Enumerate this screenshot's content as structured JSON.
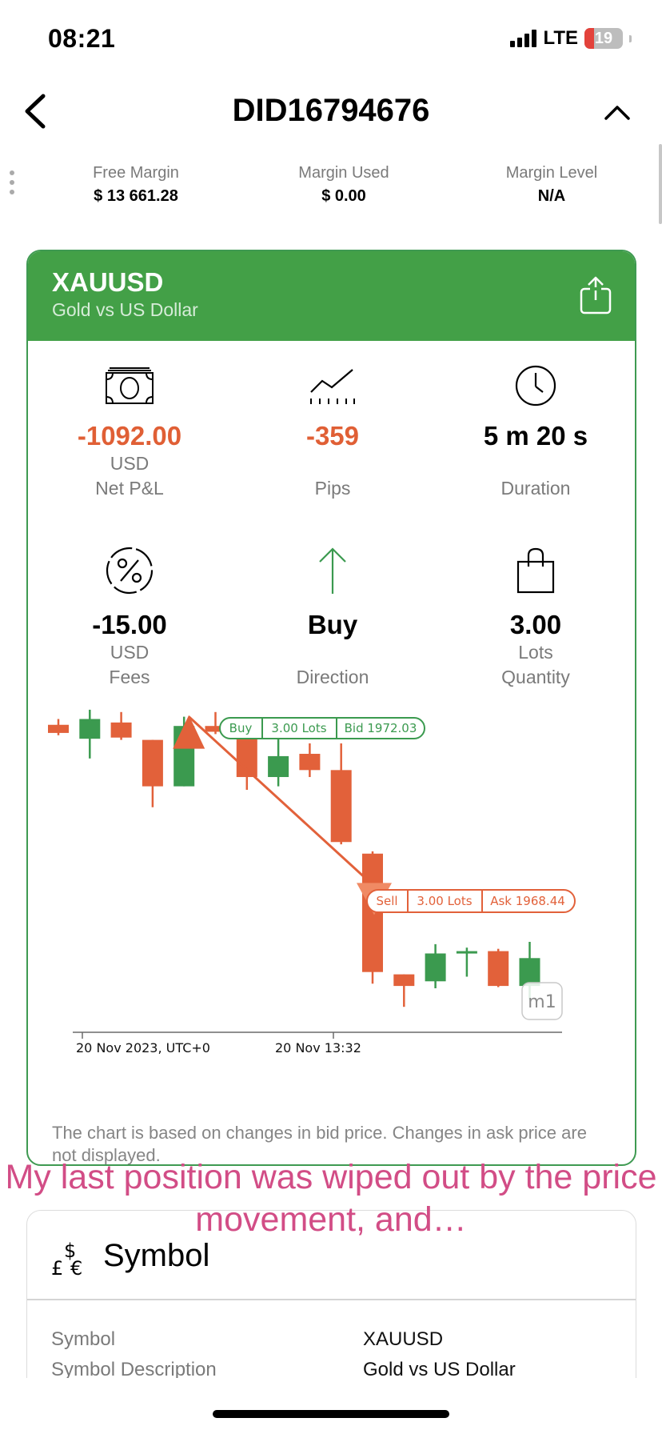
{
  "status": {
    "time": "08:21",
    "network": "LTE",
    "battery": "19"
  },
  "header": {
    "title": "DID16794676"
  },
  "account": [
    {
      "label": "Free Margin",
      "value": "$ 13 661.28"
    },
    {
      "label": "Margin Used",
      "value": "$ 0.00"
    },
    {
      "label": "Margin Level",
      "value": "N/A"
    }
  ],
  "position": {
    "symbol": "XAUUSD",
    "description": "Gold vs US Dollar",
    "metrics": [
      {
        "value": "-1092.00",
        "unit": "USD",
        "label": "Net P&L",
        "icon": "banknote-icon"
      },
      {
        "value": "-359",
        "unit": "",
        "label": "Pips",
        "icon": "pips-chart-icon"
      },
      {
        "value": "5 m 20 s",
        "unit": "",
        "label": "Duration",
        "icon": "clock-icon"
      },
      {
        "value": "-15.00",
        "unit": "USD",
        "label": "Fees",
        "icon": "percent-icon"
      },
      {
        "value": "Buy",
        "unit": "",
        "label": "Direction",
        "icon": "arrow-up-icon"
      },
      {
        "value": "3.00",
        "unit": "Lots",
        "label": "Quantity",
        "icon": "shopping-bag-icon"
      }
    ]
  },
  "chart_data": {
    "type": "candlestick",
    "x_ticks": [
      "20 Nov 2023, UTC+0",
      "20 Nov 13:32"
    ],
    "timeframe": "m1",
    "candles": [
      {
        "o": 1978.1,
        "h": 1978.6,
        "l": 1977.2,
        "c": 1977.4,
        "dir": "down"
      },
      {
        "o": 1976.9,
        "h": 1979.4,
        "l": 1975.2,
        "c": 1978.6,
        "dir": "up"
      },
      {
        "o": 1978.3,
        "h": 1979.2,
        "l": 1976.8,
        "c": 1977.0,
        "dir": "down"
      },
      {
        "o": 1976.8,
        "h": 1976.8,
        "l": 1971.0,
        "c": 1972.8,
        "dir": "down"
      },
      {
        "o": 1972.8,
        "h": 1978.8,
        "l": 1972.8,
        "c": 1978.0,
        "dir": "up"
      },
      {
        "o": 1978.0,
        "h": 1979.2,
        "l": 1977.3,
        "c": 1977.5,
        "dir": "down"
      },
      {
        "o": 1977.5,
        "h": 1978.5,
        "l": 1972.5,
        "c": 1973.6,
        "dir": "down"
      },
      {
        "o": 1973.6,
        "h": 1977.8,
        "l": 1972.8,
        "c": 1975.4,
        "dir": "up"
      },
      {
        "o": 1975.6,
        "h": 1976.5,
        "l": 1973.6,
        "c": 1974.2,
        "dir": "down"
      },
      {
        "o": 1974.2,
        "h": 1976.5,
        "l": 1967.8,
        "c": 1968.0,
        "dir": "down"
      },
      {
        "o": 1967.0,
        "h": 1967.2,
        "l": 1955.8,
        "c": 1956.8,
        "dir": "down"
      },
      {
        "o": 1956.6,
        "h": 1956.6,
        "l": 1953.8,
        "c": 1955.6,
        "dir": "down"
      },
      {
        "o": 1956.0,
        "h": 1959.2,
        "l": 1955.4,
        "c": 1958.4,
        "dir": "up"
      },
      {
        "o": 1958.4,
        "h": 1958.9,
        "l": 1956.4,
        "c": 1958.6,
        "dir": "up"
      },
      {
        "o": 1958.6,
        "h": 1958.8,
        "l": 1955.5,
        "c": 1955.6,
        "dir": "down"
      },
      {
        "o": 1955.6,
        "h": 1959.4,
        "l": 1954.4,
        "c": 1958.0,
        "dir": "up"
      }
    ],
    "entry": {
      "side": "Buy",
      "lots": "3.00 Lots",
      "price_label": "Bid 1972.03"
    },
    "exit": {
      "side": "Sell",
      "lots": "3.00 Lots",
      "price_label": "Ask 1968.44"
    }
  },
  "chart_note": "The chart is based on changes in bid price. Changes in ask price are not displayed.",
  "caption": "My last position was wiped out by the price movement, and…",
  "symbol_section": {
    "title": "Symbol",
    "rows": [
      {
        "key": "Symbol",
        "value": "XAUUSD"
      },
      {
        "key": "Symbol Description",
        "value": "Gold vs US Dollar"
      }
    ]
  },
  "colors": {
    "up": "#3b9a4f",
    "down": "#e2613a",
    "brand_green": "#43a047"
  }
}
